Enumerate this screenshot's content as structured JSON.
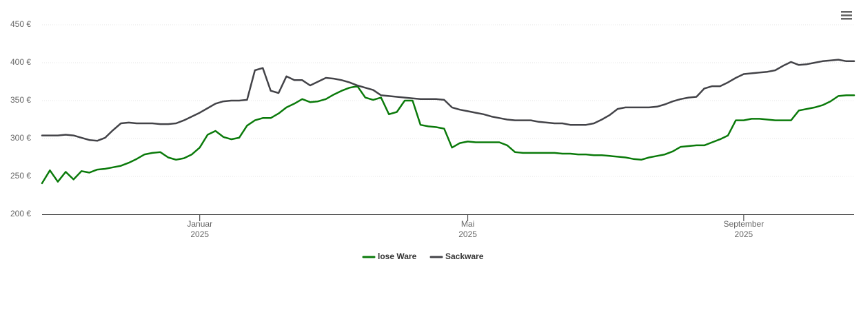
{
  "chart_data": {
    "type": "line",
    "categories": [
      null,
      null,
      null,
      null,
      null,
      null,
      null,
      null,
      null,
      null,
      null,
      null,
      null,
      null,
      null,
      null,
      null,
      null,
      null,
      null,
      "Januar 2025",
      null,
      null,
      null,
      null,
      null,
      null,
      null,
      null,
      null,
      null,
      null,
      null,
      null,
      null,
      null,
      null,
      null,
      null,
      null,
      null,
      null,
      null,
      null,
      null,
      null,
      null,
      null,
      null,
      null,
      null,
      null,
      null,
      null,
      "Mai 2025",
      null,
      null,
      null,
      null,
      null,
      null,
      null,
      null,
      null,
      null,
      null,
      null,
      null,
      null,
      null,
      null,
      null,
      null,
      null,
      null,
      null,
      null,
      null,
      null,
      null,
      null,
      null,
      null,
      null,
      null,
      null,
      null,
      null,
      null,
      "September 2025",
      null,
      null,
      null,
      null,
      null,
      null,
      null,
      null,
      null,
      null,
      null,
      null,
      null,
      null
    ],
    "series": [
      {
        "name": "lose Ware",
        "color": "#0a7a0a",
        "values": [
          241,
          258,
          243,
          256,
          246,
          257,
          255,
          259,
          260,
          262,
          264,
          268,
          273,
          279,
          281,
          282,
          275,
          272,
          274,
          279,
          288,
          305,
          310,
          302,
          299,
          301,
          317,
          324,
          327,
          327,
          333,
          341,
          346,
          352,
          348,
          349,
          352,
          358,
          363,
          367,
          369,
          354,
          351,
          354,
          332,
          335,
          350,
          350,
          318,
          316,
          315,
          313,
          288,
          294,
          296,
          295,
          295,
          295,
          295,
          291,
          282,
          281,
          281,
          281,
          281,
          281,
          280,
          280,
          279,
          279,
          278,
          278,
          277,
          276,
          275,
          273,
          272,
          275,
          277,
          279,
          283,
          289,
          290,
          291,
          291,
          295,
          299,
          304,
          324,
          324,
          326,
          326,
          325,
          324,
          324,
          324,
          337,
          339,
          341,
          344,
          349,
          356,
          357,
          357
        ]
      },
      {
        "name": "Sackware",
        "color": "#434348",
        "values": [
          304,
          304,
          304,
          305,
          304,
          301,
          298,
          297,
          301,
          311,
          320,
          321,
          320,
          320,
          320,
          319,
          319,
          320,
          324,
          329,
          334,
          340,
          346,
          349,
          350,
          350,
          351,
          390,
          393,
          363,
          360,
          382,
          377,
          377,
          370,
          375,
          380,
          379,
          377,
          374,
          370,
          367,
          364,
          357,
          356,
          355,
          354,
          353,
          352,
          352,
          352,
          351,
          341,
          338,
          336,
          334,
          332,
          329,
          327,
          325,
          324,
          324,
          324,
          322,
          321,
          320,
          320,
          318,
          318,
          318,
          320,
          325,
          331,
          339,
          341,
          341,
          341,
          341,
          342,
          345,
          349,
          352,
          354,
          355,
          366,
          369,
          369,
          374,
          380,
          385,
          386,
          387,
          388,
          390,
          396,
          401,
          397,
          398,
          400,
          402,
          403,
          404,
          402,
          402
        ]
      }
    ],
    "ylim": [
      200,
      450
    ],
    "yticks": [
      {
        "value": 200,
        "label": "200 €"
      },
      {
        "value": 250,
        "label": "250 €"
      },
      {
        "value": 300,
        "label": "300 €"
      },
      {
        "value": 350,
        "label": "350 €"
      },
      {
        "value": 400,
        "label": "400 €"
      },
      {
        "value": 450,
        "label": "450 €"
      }
    ],
    "grid": true,
    "legend": "bottom"
  }
}
